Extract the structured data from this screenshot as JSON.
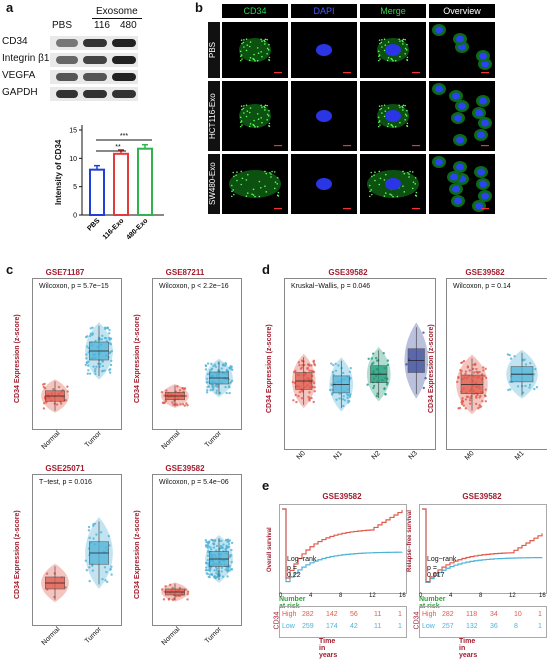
{
  "panels": {
    "a": "a",
    "b": "b",
    "c": "c",
    "d": "d",
    "e": "e"
  },
  "panel_a": {
    "header_group": "Exosome",
    "lanes": [
      "PBS",
      "116",
      "480"
    ],
    "blots": [
      "CD34",
      "Integrin β1",
      "VEGFA",
      "GAPDH"
    ],
    "ylabel": "Intensity of CD34",
    "yticks": [
      "0",
      "5",
      "10",
      "15"
    ],
    "sig": [
      "**",
      "***"
    ]
  },
  "panel_b": {
    "columns": [
      "CD34",
      "DAPI",
      "Merge",
      "Overview"
    ],
    "rows": [
      "PBS",
      "HCT116-Exo",
      "SW480-Exo"
    ]
  },
  "panel_c": {
    "plots": [
      {
        "title": "GSE71187",
        "stat": "Wilcoxon, p = 5.7e−15",
        "ylabel": "CD34 Expression (z-score)",
        "x": [
          "Normal",
          "Tumor"
        ]
      },
      {
        "title": "GSE87211",
        "stat": "Wilcoxon, p < 2.2e−16",
        "ylabel": "CD34 Expression (z-score)",
        "x": [
          "Normal",
          "Tumor"
        ]
      },
      {
        "title": "GSE25071",
        "stat": "T−test, p = 0.016",
        "ylabel": "CD34 Expression (z-score)",
        "x": [
          "Normal",
          "Tumor"
        ]
      },
      {
        "title": "GSE39582",
        "stat": "Wilcoxon, p = 5.4e−06",
        "ylabel": "CD34 Expression (z-score)",
        "x": [
          "Normal",
          "Tumor"
        ]
      }
    ]
  },
  "panel_d": {
    "plots": [
      {
        "title": "GSE39582",
        "stat": "Kruskal−Wallis, p = 0.046",
        "ylabel": "CD34 Expression (z-score)",
        "x": [
          "N0",
          "N1",
          "N2",
          "N3"
        ]
      },
      {
        "title": "GSE39582",
        "stat": "Wilcoxon, p = 0.14",
        "ylabel": "CD34 Expression (z-score)",
        "x": [
          "M0",
          "M1"
        ]
      }
    ]
  },
  "panel_e": {
    "plots": [
      {
        "title": "GSE39582",
        "ylabel": "Overall survival",
        "logrank": "Log−rank",
        "p": "p = 0.22",
        "risk_title": "Number at risk",
        "xlabel": "Time in years",
        "group_label": "CD34",
        "high": "High",
        "low": "Low",
        "high_counts": [
          "282",
          "142",
          "56",
          "11",
          "1"
        ],
        "low_counts": [
          "259",
          "174",
          "42",
          "11",
          "1"
        ],
        "xticks": [
          "0",
          "4",
          "8",
          "12",
          "16"
        ]
      },
      {
        "title": "GSE39582",
        "ylabel": "Relapse−free survival",
        "logrank": "Log−rank",
        "p": "p = 0.017",
        "risk_title": "Number at risk",
        "xlabel": "Time in years",
        "group_label": "CD34",
        "high": "High",
        "low": "Low",
        "high_counts": [
          "282",
          "118",
          "34",
          "10",
          "1"
        ],
        "low_counts": [
          "257",
          "132",
          "36",
          "8",
          "1"
        ],
        "xticks": [
          "0",
          "4",
          "8",
          "12",
          "16"
        ]
      }
    ]
  },
  "chart_data": [
    {
      "type": "bar",
      "categories": [
        "PBS",
        "116-Exo",
        "480-Exo"
      ],
      "values": [
        8,
        10.8,
        11.7
      ],
      "ylabel": "Intensity of CD34",
      "ylim": [
        0,
        15
      ]
    }
  ],
  "colors": {
    "pbs": "#1f3fd8",
    "exo116": "#e23b3b",
    "exo480": "#2fb34a",
    "red": "#e05a4b",
    "blue": "#4fb3d8",
    "title": "#a11d2e"
  }
}
